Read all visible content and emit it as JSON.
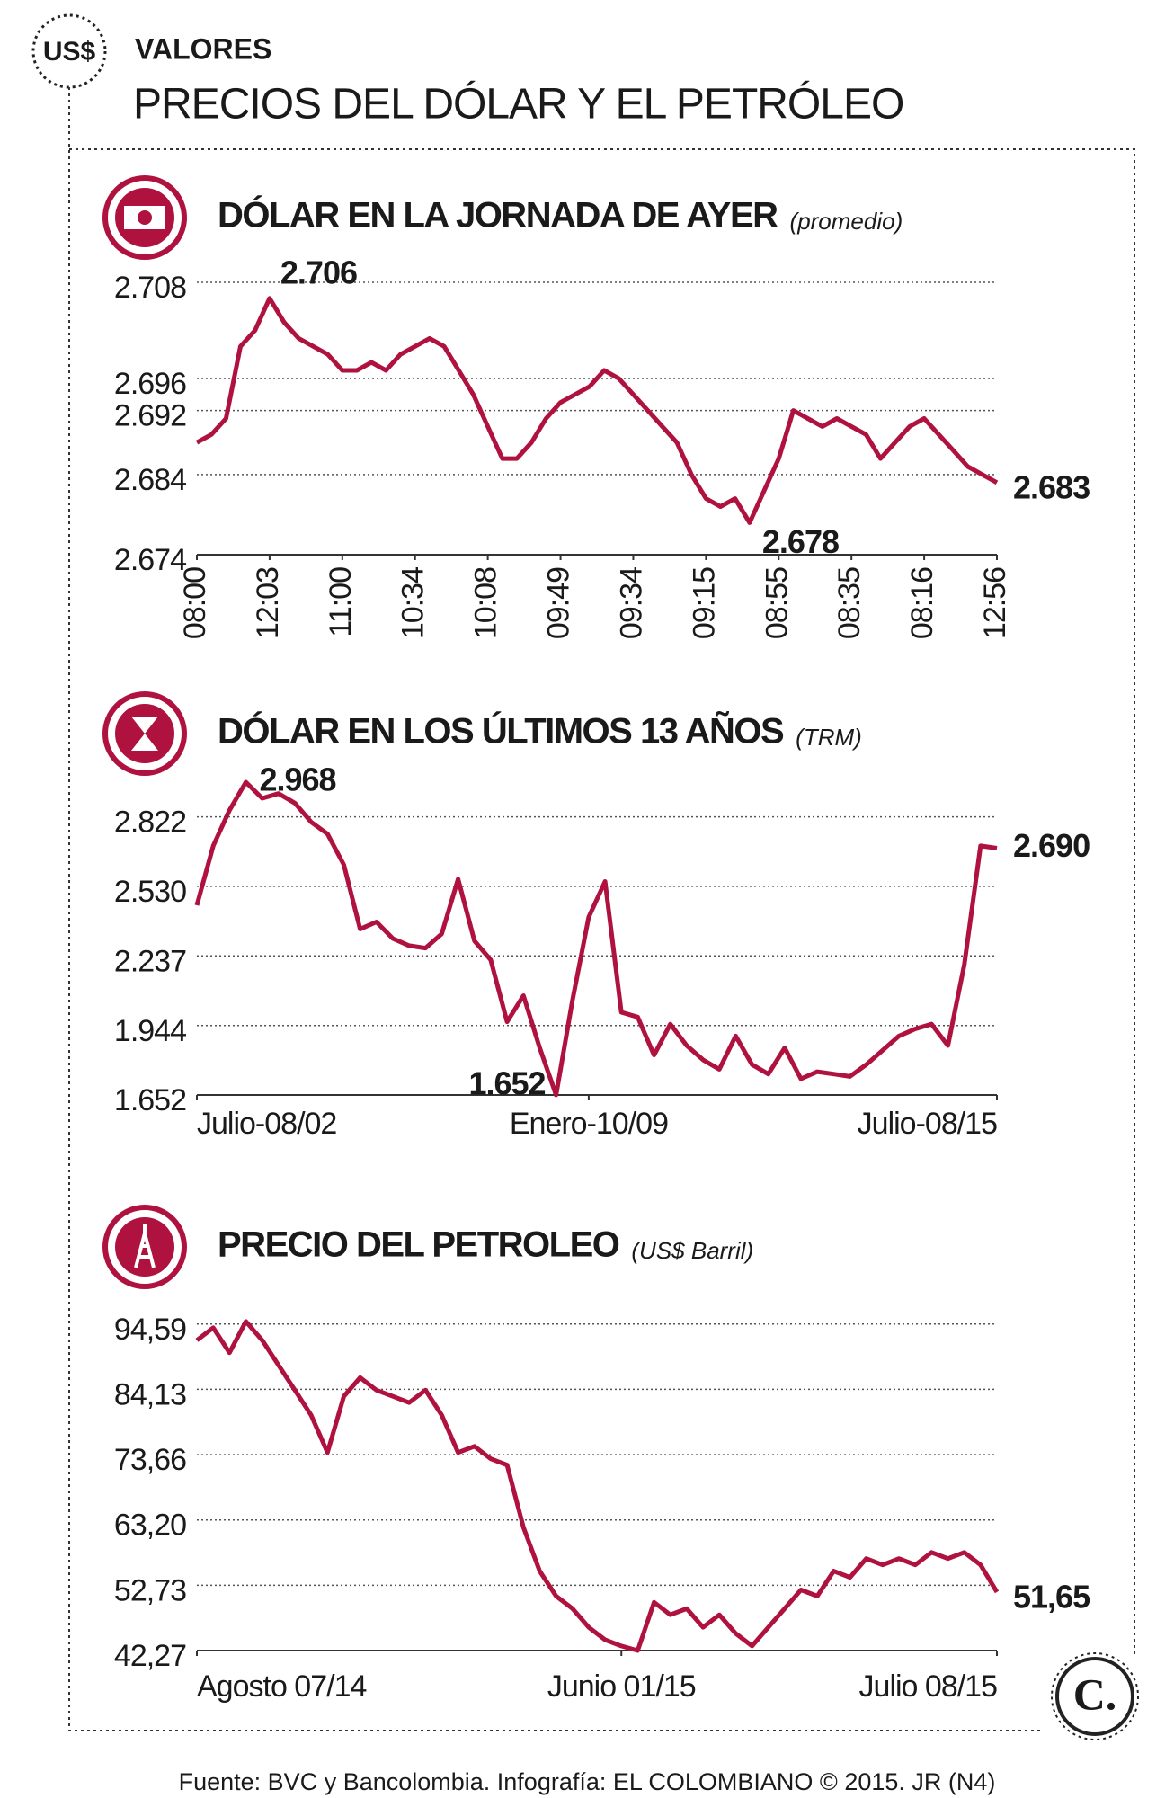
{
  "header": {
    "logo": "US$",
    "section": "VALORES",
    "title": "PRECIOS DEL DÓLAR Y EL PETRÓLEO"
  },
  "brand_logo": "C.",
  "footer": "Fuente: BVC y Bancolombia. Infografía: EL COLOMBIANO © 2015. JR (N4)",
  "chart_data": [
    {
      "type": "line",
      "title": "DÓLAR EN LA JORNADA DE AYER",
      "subtitle": "(promedio)",
      "color": "#b0123f",
      "values": [
        2.688,
        2.689,
        2.691,
        2.7,
        2.702,
        2.706,
        2.703,
        2.701,
        2.7,
        2.699,
        2.697,
        2.697,
        2.698,
        2.697,
        2.699,
        2.7,
        2.701,
        2.7,
        2.697,
        2.694,
        2.69,
        2.686,
        2.686,
        2.688,
        2.691,
        2.693,
        2.694,
        2.695,
        2.697,
        2.696,
        2.694,
        2.692,
        2.69,
        2.688,
        2.684,
        2.681,
        2.68,
        2.681,
        2.678,
        2.682,
        2.686,
        2.692,
        2.691,
        2.69,
        2.691,
        2.69,
        2.689,
        2.686,
        2.688,
        2.69,
        2.691,
        2.689,
        2.687,
        2.685,
        2.684,
        2.683
      ],
      "xticks": [
        {
          "value": 0,
          "label": "08:00"
        },
        {
          "value": 5,
          "label": "12:03"
        },
        {
          "value": 10,
          "label": "11:00"
        },
        {
          "value": 15,
          "label": "10:34"
        },
        {
          "value": 20,
          "label": "10:08"
        },
        {
          "value": 25,
          "label": "09:49"
        },
        {
          "value": 30,
          "label": "09:34"
        },
        {
          "value": 35,
          "label": "09:15"
        },
        {
          "value": 40,
          "label": "08:55"
        },
        {
          "value": 45,
          "label": "08:35"
        },
        {
          "value": 50,
          "label": "08:16"
        },
        {
          "value": 55,
          "label": "12:56"
        }
      ],
      "ylim": [
        2.674,
        2.708
      ],
      "yticks": [
        {
          "value": 2.708,
          "label": "2.708"
        },
        {
          "value": 2.696,
          "label": "2.696"
        },
        {
          "value": 2.692,
          "label": "2.692"
        },
        {
          "value": 2.684,
          "label": "2.684"
        },
        {
          "value": 2.674,
          "label": "2.674"
        }
      ],
      "grid": true,
      "annotations": [
        {
          "index": 5,
          "text": "2.706"
        },
        {
          "index": 38,
          "text": "2.678"
        },
        {
          "index": 55,
          "text": "2.683"
        }
      ]
    },
    {
      "type": "line",
      "title": "DÓLAR EN LOS ÚLTIMOS 13 AÑOS",
      "subtitle": "(TRM)",
      "color": "#b0123f",
      "values": [
        2.45,
        2.7,
        2.85,
        2.968,
        2.9,
        2.92,
        2.88,
        2.8,
        2.75,
        2.62,
        2.35,
        2.38,
        2.31,
        2.28,
        2.27,
        2.33,
        2.56,
        2.3,
        2.22,
        1.96,
        2.07,
        1.85,
        1.652,
        2.05,
        2.4,
        2.55,
        2.0,
        1.98,
        1.82,
        1.95,
        1.86,
        1.8,
        1.76,
        1.9,
        1.78,
        1.74,
        1.85,
        1.72,
        1.75,
        1.74,
        1.73,
        1.78,
        1.84,
        1.9,
        1.93,
        1.95,
        1.86,
        2.2,
        2.7,
        2.69
      ],
      "xticks": [
        {
          "value": 0,
          "label": "Julio-08/02"
        },
        {
          "value": 24,
          "label": "Enero-10/09"
        },
        {
          "value": 49,
          "label": "Julio-08/15"
        }
      ],
      "ylim": [
        1.652,
        2.968
      ],
      "yticks": [
        {
          "value": 2.822,
          "label": "2.822"
        },
        {
          "value": 2.53,
          "label": "2.530"
        },
        {
          "value": 2.237,
          "label": "2.237"
        },
        {
          "value": 1.944,
          "label": "1.944"
        },
        {
          "value": 1.652,
          "label": "1.652"
        }
      ],
      "grid": true,
      "annotations": [
        {
          "index": 3,
          "text": "2.968"
        },
        {
          "index": 22,
          "text": "1.652"
        },
        {
          "index": 49,
          "text": "2.690"
        }
      ]
    },
    {
      "type": "line",
      "title": "PRECIO DEL PETROLEO",
      "subtitle": "(US$ Barril)",
      "color": "#b0123f",
      "values": [
        92,
        94,
        90,
        95,
        92,
        88,
        84,
        80,
        74,
        83,
        86,
        84,
        83,
        82,
        84,
        80,
        74,
        75,
        73,
        72,
        62,
        55,
        51,
        49,
        46,
        44,
        43,
        42.27,
        50,
        48,
        49,
        46,
        48,
        45,
        43,
        46,
        49,
        52,
        51,
        55,
        54,
        57,
        56,
        57,
        56,
        58,
        57,
        58,
        56,
        51.65
      ],
      "xticks": [
        {
          "value": 0,
          "label": "Agosto 07/14"
        },
        {
          "value": 26,
          "label": "Junio 01/15"
        },
        {
          "value": 49,
          "label": "Julio 08/15"
        }
      ],
      "ylim": [
        42.27,
        96
      ],
      "yticks": [
        {
          "value": 94.59,
          "label": "94,59"
        },
        {
          "value": 84.13,
          "label": "84,13"
        },
        {
          "value": 73.66,
          "label": "73,66"
        },
        {
          "value": 63.2,
          "label": "63,20"
        },
        {
          "value": 52.73,
          "label": "52,73"
        },
        {
          "value": 42.27,
          "label": "42,27"
        }
      ],
      "grid": true,
      "annotations": [
        {
          "index": 49,
          "text": "51,65"
        }
      ]
    }
  ]
}
